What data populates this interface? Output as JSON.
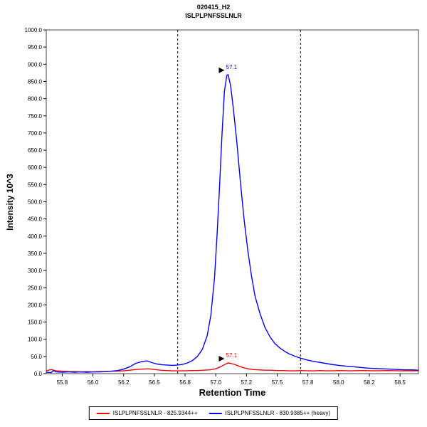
{
  "chart_data": {
    "type": "line",
    "title": "020415_H2",
    "subtitle": "ISLPLPNFSSLNLR",
    "xlabel": "Retention Time",
    "ylabel": "Intensity 10^3",
    "xlim": [
      55.62,
      58.65
    ],
    "ylim": [
      0,
      1000
    ],
    "grid": false,
    "legend_position": "bottom-center",
    "x_tick_values": [
      55.75,
      56.0,
      56.25,
      56.5,
      56.75,
      57.0,
      57.25,
      57.5,
      57.75,
      58.0,
      58.25,
      58.5
    ],
    "x_tick_labels": [
      "55.8",
      "56.0",
      "56.2",
      "56.5",
      "56.8",
      "57.0",
      "57.2",
      "57.5",
      "57.8",
      "58.0",
      "58.2",
      "58.5"
    ],
    "y_tick_values": [
      0,
      50,
      100,
      150,
      200,
      250,
      300,
      350,
      400,
      450,
      500,
      550,
      600,
      650,
      700,
      750,
      800,
      850,
      900,
      950,
      1000
    ],
    "y_tick_labels": [
      "0.0",
      "50.0",
      "100.0",
      "150.0",
      "200.0",
      "250.0",
      "300.0",
      "350.0",
      "400.0",
      "450.0",
      "500.0",
      "550.0",
      "600.0",
      "650.0",
      "700.0",
      "750.0",
      "800.0",
      "850.0",
      "900.0",
      "950.0",
      "1000.0"
    ],
    "boundaries": [
      56.69,
      57.69
    ],
    "boundary_style": "dashed-black",
    "series": [
      {
        "name": "ISLPLPNFSSLNLR - 825.9344++",
        "color": "#ff0000",
        "peak": {
          "x": 57.1,
          "y": 31,
          "label": "57.1"
        },
        "points": [
          [
            55.62,
            8
          ],
          [
            55.66,
            12
          ],
          [
            55.68,
            10
          ],
          [
            55.7,
            8
          ],
          [
            55.75,
            7
          ],
          [
            55.8,
            6
          ],
          [
            55.85,
            6
          ],
          [
            55.9,
            5
          ],
          [
            55.95,
            6
          ],
          [
            56.0,
            5
          ],
          [
            56.05,
            6
          ],
          [
            56.1,
            6
          ],
          [
            56.15,
            7
          ],
          [
            56.2,
            7
          ],
          [
            56.25,
            8
          ],
          [
            56.3,
            10
          ],
          [
            56.35,
            12
          ],
          [
            56.4,
            13
          ],
          [
            56.45,
            14
          ],
          [
            56.5,
            12
          ],
          [
            56.55,
            10
          ],
          [
            56.6,
            9
          ],
          [
            56.65,
            8
          ],
          [
            56.7,
            8
          ],
          [
            56.75,
            8
          ],
          [
            56.8,
            9
          ],
          [
            56.85,
            9
          ],
          [
            56.9,
            10
          ],
          [
            56.95,
            11
          ],
          [
            57.0,
            14
          ],
          [
            57.04,
            20
          ],
          [
            57.07,
            26
          ],
          [
            57.1,
            31
          ],
          [
            57.12,
            30
          ],
          [
            57.15,
            27
          ],
          [
            57.18,
            23
          ],
          [
            57.21,
            19
          ],
          [
            57.25,
            15
          ],
          [
            57.3,
            12
          ],
          [
            57.35,
            11
          ],
          [
            57.4,
            10
          ],
          [
            57.45,
            10
          ],
          [
            57.5,
            9
          ],
          [
            57.55,
            9
          ],
          [
            57.6,
            8
          ],
          [
            57.65,
            8
          ],
          [
            57.7,
            9
          ],
          [
            57.75,
            8
          ],
          [
            57.8,
            8
          ],
          [
            57.85,
            9
          ],
          [
            57.9,
            8
          ],
          [
            57.95,
            8
          ],
          [
            58.0,
            9
          ],
          [
            58.1,
            8
          ],
          [
            58.2,
            9
          ],
          [
            58.3,
            8
          ],
          [
            58.4,
            9
          ],
          [
            58.5,
            8
          ],
          [
            58.6,
            8
          ],
          [
            58.65,
            8
          ]
        ]
      },
      {
        "name": "ISLPLPNFSSLNLR - 830.9385++ (heavy)",
        "color": "#0000ff",
        "peak": {
          "x": 57.1,
          "y": 870,
          "label": "57.1"
        },
        "points": [
          [
            55.62,
            4
          ],
          [
            55.66,
            3
          ],
          [
            55.68,
            9
          ],
          [
            55.7,
            5
          ],
          [
            55.75,
            4
          ],
          [
            55.8,
            5
          ],
          [
            55.85,
            4
          ],
          [
            55.9,
            5
          ],
          [
            55.95,
            4
          ],
          [
            56.0,
            5
          ],
          [
            56.05,
            5
          ],
          [
            56.1,
            6
          ],
          [
            56.15,
            7
          ],
          [
            56.2,
            9
          ],
          [
            56.25,
            13
          ],
          [
            56.3,
            20
          ],
          [
            56.35,
            30
          ],
          [
            56.4,
            35
          ],
          [
            56.44,
            37
          ],
          [
            56.48,
            32
          ],
          [
            56.52,
            28
          ],
          [
            56.56,
            26
          ],
          [
            56.6,
            25
          ],
          [
            56.65,
            24
          ],
          [
            56.69,
            25
          ],
          [
            56.73,
            27
          ],
          [
            56.77,
            31
          ],
          [
            56.81,
            38
          ],
          [
            56.85,
            50
          ],
          [
            56.89,
            70
          ],
          [
            56.93,
            110
          ],
          [
            56.96,
            170
          ],
          [
            56.99,
            280
          ],
          [
            57.01,
            400
          ],
          [
            57.03,
            540
          ],
          [
            57.05,
            690
          ],
          [
            57.07,
            820
          ],
          [
            57.09,
            868
          ],
          [
            57.1,
            870
          ],
          [
            57.12,
            840
          ],
          [
            57.14,
            780
          ],
          [
            57.17,
            680
          ],
          [
            57.2,
            560
          ],
          [
            57.23,
            450
          ],
          [
            57.26,
            360
          ],
          [
            57.29,
            285
          ],
          [
            57.32,
            225
          ],
          [
            57.36,
            175
          ],
          [
            57.4,
            135
          ],
          [
            57.44,
            108
          ],
          [
            57.48,
            88
          ],
          [
            57.52,
            75
          ],
          [
            57.56,
            65
          ],
          [
            57.6,
            57
          ],
          [
            57.65,
            50
          ],
          [
            57.69,
            45
          ],
          [
            57.74,
            40
          ],
          [
            57.79,
            36
          ],
          [
            57.84,
            33
          ],
          [
            57.89,
            30
          ],
          [
            57.94,
            27
          ],
          [
            58.0,
            24
          ],
          [
            58.06,
            22
          ],
          [
            58.12,
            20
          ],
          [
            58.18,
            18
          ],
          [
            58.24,
            16
          ],
          [
            58.3,
            15
          ],
          [
            58.36,
            14
          ],
          [
            58.42,
            13
          ],
          [
            58.48,
            12
          ],
          [
            58.54,
            11
          ],
          [
            58.6,
            11
          ],
          [
            58.65,
            10
          ]
        ]
      }
    ]
  }
}
